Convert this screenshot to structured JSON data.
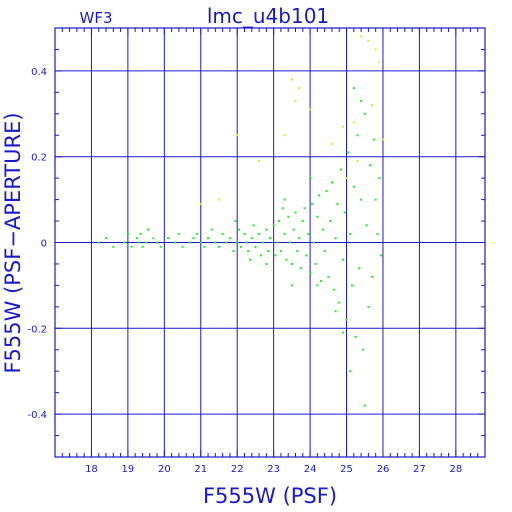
{
  "chart_data": {
    "type": "scatter",
    "title": "lmc_u4b101",
    "corner_label": "WF3",
    "xlabel": "F555W (PSF)",
    "ylabel": "F555W (PSF−APERTURE)",
    "xlim": [
      17.0,
      28.8
    ],
    "ylim": [
      -0.5,
      0.5
    ],
    "x_major_ticks": [
      18,
      19,
      20,
      21,
      22,
      23,
      24,
      25,
      26,
      27,
      28
    ],
    "y_major_ticks": [
      -0.4,
      -0.2,
      0,
      0.2,
      0.4
    ],
    "x_minor_step": 0.2,
    "y_minor_step": 0.05,
    "grid": true,
    "colors": {
      "axes": "#1a1acc",
      "main_points": "#22ee22",
      "outlier_points": "#e6e622",
      "background": "#ffffff"
    },
    "series": [
      {
        "color_key": "main_points",
        "points": [
          [
            18.2,
            0.0
          ],
          [
            18.4,
            0.01
          ],
          [
            18.6,
            -0.01
          ],
          [
            18.9,
            0.0
          ],
          [
            19.0,
            0.02
          ],
          [
            19.1,
            -0.01
          ],
          [
            19.25,
            0.01
          ],
          [
            19.3,
            0.0
          ],
          [
            19.35,
            0.02
          ],
          [
            19.4,
            -0.01
          ],
          [
            19.5,
            0.0
          ],
          [
            19.55,
            0.03
          ],
          [
            19.7,
            0.01
          ],
          [
            19.8,
            0.0
          ],
          [
            19.9,
            -0.01
          ],
          [
            20.1,
            0.01
          ],
          [
            20.3,
            0.0
          ],
          [
            20.4,
            0.02
          ],
          [
            20.5,
            -0.01
          ],
          [
            20.7,
            0.0
          ],
          [
            20.8,
            0.01
          ],
          [
            20.9,
            0.02
          ],
          [
            21.0,
            0.0
          ],
          [
            21.1,
            -0.01
          ],
          [
            21.2,
            0.01
          ],
          [
            21.3,
            0.03
          ],
          [
            21.4,
            0.0
          ],
          [
            21.5,
            -0.01
          ],
          [
            21.6,
            0.02
          ],
          [
            21.7,
            0.0
          ],
          [
            21.8,
            0.01
          ],
          [
            21.9,
            -0.02
          ],
          [
            22.0,
            0.0
          ],
          [
            22.05,
            0.03
          ],
          [
            22.1,
            -0.01
          ],
          [
            22.2,
            0.02
          ],
          [
            22.25,
            0.0
          ],
          [
            22.3,
            -0.02
          ],
          [
            22.4,
            0.01
          ],
          [
            22.45,
            0.04
          ],
          [
            22.5,
            -0.01
          ],
          [
            22.6,
            0.02
          ],
          [
            22.65,
            -0.03
          ],
          [
            22.7,
            0.0
          ],
          [
            22.8,
            0.03
          ],
          [
            22.85,
            -0.02
          ],
          [
            22.9,
            0.01
          ],
          [
            23.0,
            0.04
          ],
          [
            23.05,
            -0.03
          ],
          [
            23.1,
            0.0
          ],
          [
            23.15,
            0.05
          ],
          [
            23.2,
            -0.02
          ],
          [
            23.3,
            0.02
          ],
          [
            23.35,
            -0.04
          ],
          [
            23.4,
            0.06
          ],
          [
            23.45,
            0.0
          ],
          [
            23.5,
            -0.05
          ],
          [
            23.55,
            0.03
          ],
          [
            23.6,
            0.07
          ],
          [
            23.65,
            -0.02
          ],
          [
            23.7,
            0.01
          ],
          [
            23.75,
            -0.06
          ],
          [
            23.8,
            0.05
          ],
          [
            23.85,
            0.08
          ],
          [
            23.9,
            -0.03
          ],
          [
            23.95,
            0.02
          ],
          [
            24.0,
            -0.07
          ],
          [
            24.05,
            0.09
          ],
          [
            24.1,
            0.0
          ],
          [
            24.15,
            -0.05
          ],
          [
            24.2,
            0.06
          ],
          [
            24.25,
            0.11
          ],
          [
            24.3,
            -0.09
          ],
          [
            24.35,
            0.03
          ],
          [
            24.4,
            -0.02
          ],
          [
            24.45,
            0.12
          ],
          [
            24.5,
            -0.08
          ],
          [
            24.55,
            0.05
          ],
          [
            24.6,
            0.14
          ],
          [
            24.65,
            -0.11
          ],
          [
            24.7,
            0.01
          ],
          [
            24.75,
            0.09
          ],
          [
            24.8,
            -0.14
          ],
          [
            24.85,
            0.17
          ],
          [
            24.9,
            -0.04
          ],
          [
            24.95,
            0.07
          ],
          [
            25.0,
            -0.18
          ],
          [
            25.05,
            0.21
          ],
          [
            25.1,
            0.02
          ],
          [
            25.15,
            -0.1
          ],
          [
            25.2,
            0.13
          ],
          [
            25.25,
            -0.22
          ],
          [
            25.3,
            0.25
          ],
          [
            25.35,
            -0.06
          ],
          [
            25.4,
            0.1
          ],
          [
            25.45,
            -0.25
          ],
          [
            25.5,
            0.3
          ],
          [
            25.55,
            0.04
          ],
          [
            25.6,
            -0.15
          ],
          [
            25.65,
            0.18
          ],
          [
            25.7,
            -0.08
          ],
          [
            25.75,
            0.24
          ],
          [
            25.8,
            0.1
          ],
          [
            25.85,
            0.02
          ],
          [
            25.9,
            0.15
          ],
          [
            25.95,
            -0.03
          ],
          [
            25.2,
            0.36
          ],
          [
            25.5,
            -0.38
          ],
          [
            25.1,
            -0.3
          ],
          [
            24.9,
            -0.21
          ],
          [
            24.2,
            -0.1
          ],
          [
            23.5,
            -0.1
          ],
          [
            22.8,
            -0.05
          ],
          [
            24.0,
            0.15
          ],
          [
            23.3,
            0.1
          ],
          [
            21.95,
            0.05
          ],
          [
            22.35,
            -0.04
          ],
          [
            23.25,
            0.08
          ],
          [
            24.7,
            -0.16
          ],
          [
            25.4,
            0.33
          ]
        ]
      },
      {
        "color_key": "outlier_points",
        "points": [
          [
            21.0,
            0.09
          ],
          [
            21.5,
            0.1
          ],
          [
            22.0,
            0.25
          ],
          [
            22.6,
            0.19
          ],
          [
            23.3,
            0.25
          ],
          [
            23.5,
            0.38
          ],
          [
            23.6,
            0.33
          ],
          [
            23.7,
            0.36
          ],
          [
            24.0,
            0.31
          ],
          [
            24.6,
            0.23
          ],
          [
            25.0,
            0.15
          ],
          [
            25.2,
            0.28
          ],
          [
            25.4,
            0.48
          ],
          [
            25.6,
            0.47
          ],
          [
            25.8,
            0.45
          ],
          [
            25.9,
            0.42
          ],
          [
            25.7,
            0.32
          ],
          [
            25.3,
            0.19
          ],
          [
            24.9,
            0.27
          ],
          [
            26.0,
            0.24
          ]
        ]
      }
    ]
  }
}
